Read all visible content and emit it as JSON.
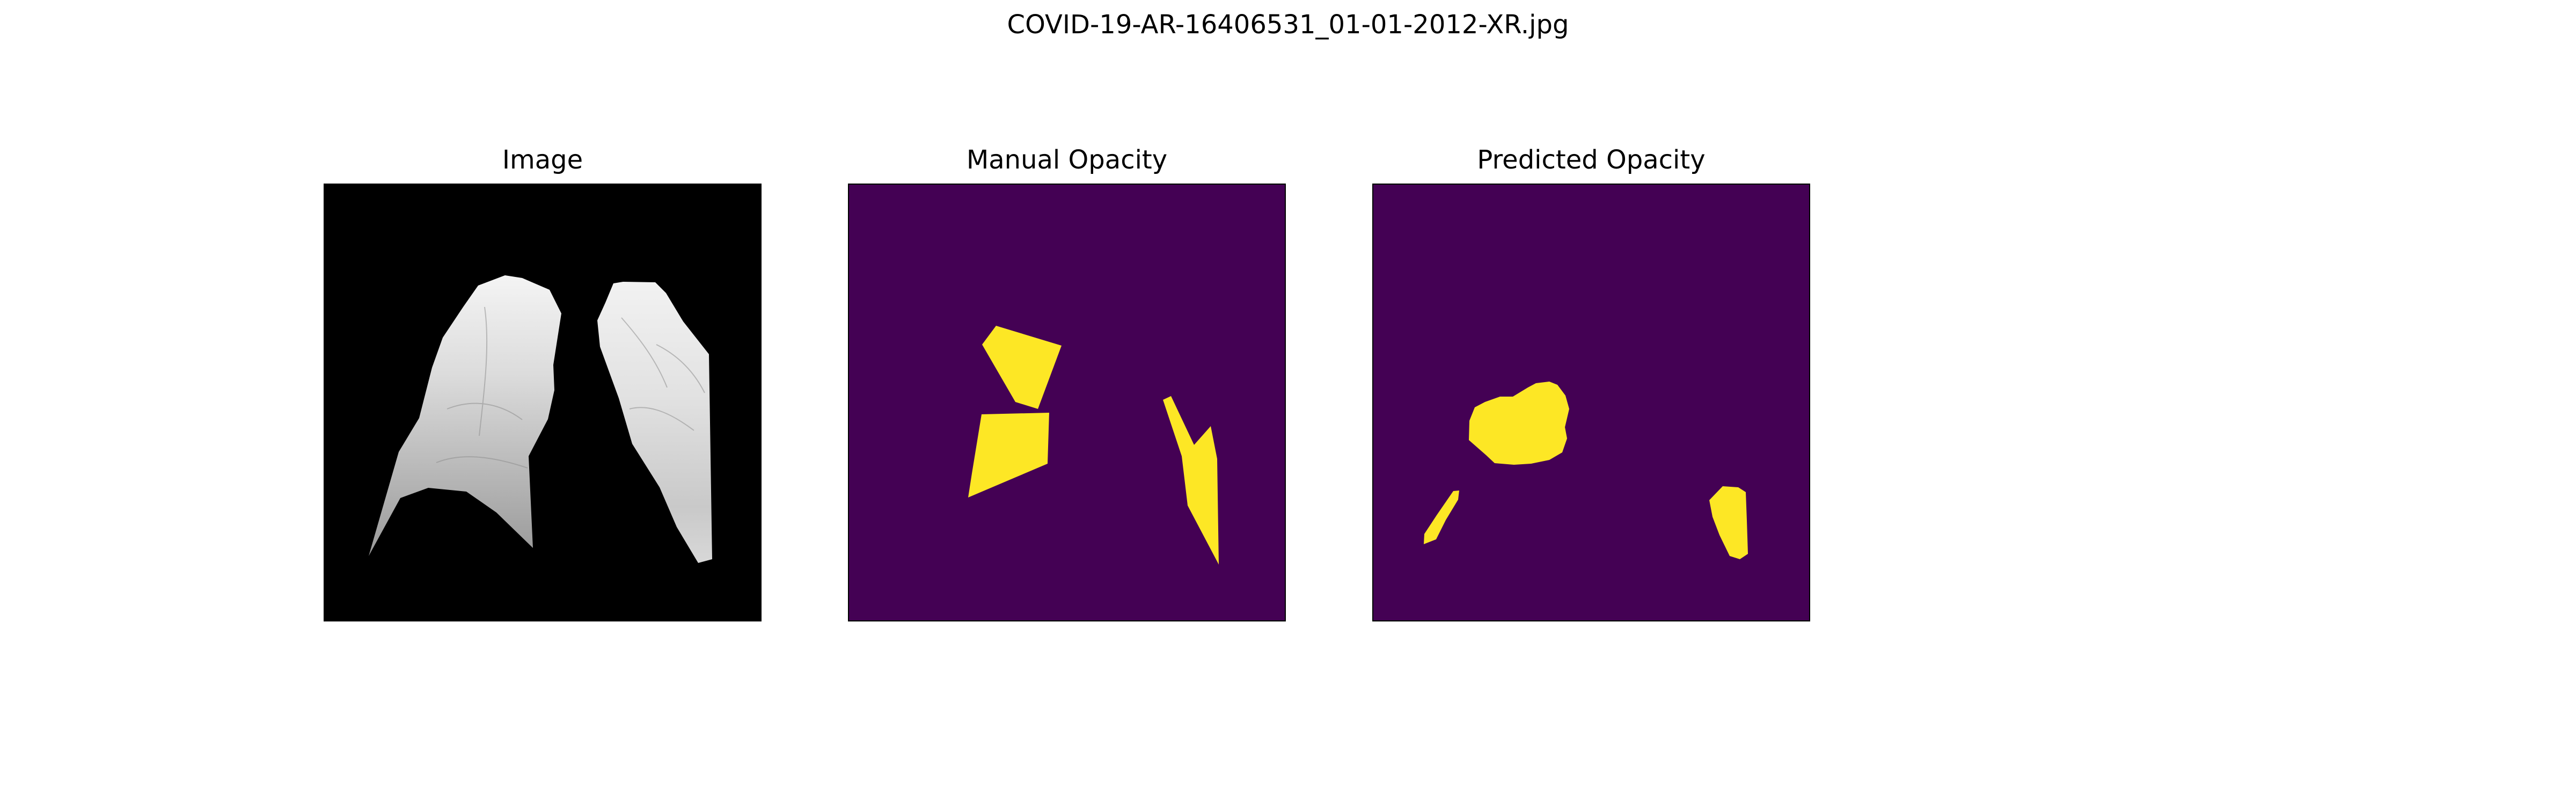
{
  "figure": {
    "title": "COVID-19-AR-16406531_01-01-2012-XR.jpg"
  },
  "panels": [
    {
      "title": "Image"
    },
    {
      "title": "Manual Opacity"
    },
    {
      "title": "Predicted Opacity"
    }
  ],
  "colors": {
    "image_background": "#000000",
    "lung_light": "#f2f2f2",
    "lung_mid": "#bdbdbd",
    "mask_background": "#440154",
    "mask_foreground": "#fde725"
  }
}
